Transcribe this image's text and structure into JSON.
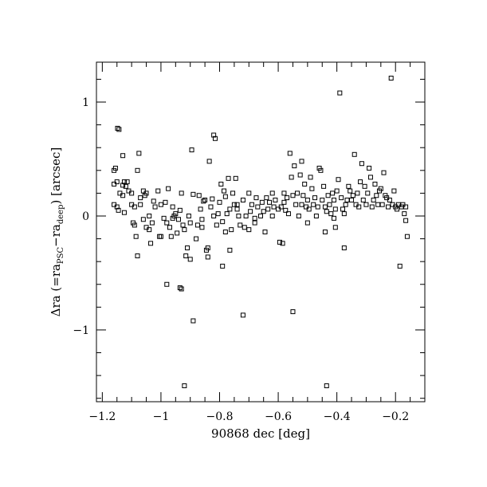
{
  "chart_data": {
    "type": "scatter",
    "title": "",
    "xlabel": "90868 dec [deg]",
    "ylabel": {
      "delta": "Δ",
      "base": "ra (=ra",
      "sub1": "PSC",
      "mid": "−ra",
      "sub2": "deep",
      "end": ") [arcsec]"
    },
    "xlim": [
      -1.22,
      -0.1
    ],
    "ylim": [
      -1.63,
      1.35
    ],
    "x_ticks": [
      -1.2,
      -1.0,
      -0.8,
      -0.6,
      -0.4,
      -0.2
    ],
    "x_tick_labels": [
      "−1.2",
      "−1",
      "−0.8",
      "−0.6",
      "−0.4",
      "−0.2"
    ],
    "y_ticks": [
      -1,
      0,
      1
    ],
    "y_tick_labels": [
      "−1",
      "0",
      "1"
    ],
    "grid": false,
    "legend": "none",
    "marker": "open-square",
    "color": "#000000",
    "points": [
      [
        -1.16,
        0.4
      ],
      [
        -1.155,
        0.42
      ],
      [
        -1.16,
        0.28
      ],
      [
        -1.15,
        0.3
      ],
      [
        -1.16,
        0.1
      ],
      [
        -1.15,
        0.08
      ],
      [
        -1.145,
        0.05
      ],
      [
        -1.14,
        0.2
      ],
      [
        -1.148,
        0.77
      ],
      [
        -1.143,
        0.76
      ],
      [
        -1.13,
        0.27
      ],
      [
        -1.125,
        0.3
      ],
      [
        -1.12,
        0.26
      ],
      [
        -1.13,
        0.18
      ],
      [
        -1.125,
        0.03
      ],
      [
        -1.115,
        0.3
      ],
      [
        -1.13,
        0.53
      ],
      [
        -1.11,
        0.22
      ],
      [
        -1.1,
        0.2
      ],
      [
        -1.1,
        0.1
      ],
      [
        -1.09,
        0.08
      ],
      [
        -1.095,
        -0.06
      ],
      [
        -1.09,
        -0.08
      ],
      [
        -1.085,
        -0.18
      ],
      [
        -1.08,
        0.4
      ],
      [
        -1.075,
        0.55
      ],
      [
        -1.08,
        -0.35
      ],
      [
        -1.07,
        0.16
      ],
      [
        -1.06,
        0.22
      ],
      [
        -1.055,
        0.18
      ],
      [
        -1.05,
        0.2
      ],
      [
        -1.06,
        -0.03
      ],
      [
        -1.05,
        -0.1
      ],
      [
        -1.04,
        0.0
      ],
      [
        -1.04,
        -0.12
      ],
      [
        -1.03,
        -0.06
      ],
      [
        -1.025,
        0.13
      ],
      [
        -1.02,
        0.08
      ],
      [
        -1.01,
        0.22
      ],
      [
        -1.005,
        -0.18
      ],
      [
        -1.0,
        0.1
      ],
      [
        -0.99,
        -0.02
      ],
      [
        -0.985,
        0.12
      ],
      [
        -0.98,
        -0.06
      ],
      [
        -0.975,
        0.24
      ],
      [
        -0.97,
        -0.1
      ],
      [
        -0.965,
        -0.18
      ],
      [
        -0.96,
        -0.02
      ],
      [
        -0.955,
        0.0
      ],
      [
        -0.95,
        0.02
      ],
      [
        -0.945,
        -0.15
      ],
      [
        -0.94,
        -0.03
      ],
      [
        -0.935,
        0.05
      ],
      [
        -0.93,
        0.2
      ],
      [
        -0.925,
        -0.08
      ],
      [
        -0.92,
        -0.12
      ],
      [
        -0.915,
        -0.35
      ],
      [
        -0.91,
        -0.28
      ],
      [
        -0.905,
        0.0
      ],
      [
        -0.9,
        -0.06
      ],
      [
        -0.895,
        0.58
      ],
      [
        -0.89,
        0.19
      ],
      [
        -0.88,
        -0.2
      ],
      [
        -0.875,
        -0.08
      ],
      [
        -0.87,
        0.18
      ],
      [
        -0.865,
        0.06
      ],
      [
        -0.86,
        -0.03
      ],
      [
        -0.855,
        0.13
      ],
      [
        -0.85,
        0.14
      ],
      [
        -0.845,
        -0.3
      ],
      [
        -0.84,
        -0.36
      ],
      [
        -0.835,
        0.48
      ],
      [
        -0.83,
        0.08
      ],
      [
        -0.825,
        0.15
      ],
      [
        -0.82,
        0.71
      ],
      [
        -0.815,
        0.68
      ],
      [
        -0.81,
        -0.08
      ],
      [
        -0.805,
        0.02
      ],
      [
        -0.8,
        0.12
      ],
      [
        -0.795,
        0.28
      ],
      [
        -0.79,
        -0.05
      ],
      [
        -0.785,
        0.22
      ],
      [
        -0.78,
        0.17
      ],
      [
        -0.775,
        0.02
      ],
      [
        -0.77,
        0.33
      ],
      [
        -0.765,
        0.06
      ],
      [
        -0.76,
        -0.12
      ],
      [
        -0.755,
        0.2
      ],
      [
        -0.75,
        0.1
      ],
      [
        -0.745,
        0.33
      ],
      [
        -0.74,
        0.06
      ],
      [
        -0.735,
        0.0
      ],
      [
        -0.73,
        -0.08
      ],
      [
        -0.72,
        0.14
      ],
      [
        -0.715,
        -0.1
      ],
      [
        -0.71,
        0.0
      ],
      [
        -0.7,
        0.2
      ],
      [
        -0.695,
        0.04
      ],
      [
        -0.69,
        0.1
      ],
      [
        -0.68,
        -0.02
      ],
      [
        -0.675,
        0.16
      ],
      [
        -0.67,
        0.08
      ],
      [
        -0.66,
        0.0
      ],
      [
        -0.655,
        0.12
      ],
      [
        -0.65,
        0.04
      ],
      [
        -0.64,
        0.16
      ],
      [
        -0.635,
        0.06
      ],
      [
        -0.63,
        0.12
      ],
      [
        -0.62,
        0.0
      ],
      [
        -0.615,
        0.08
      ],
      [
        -0.61,
        0.14
      ],
      [
        -0.6,
        0.06
      ],
      [
        -0.59,
        0.08
      ],
      [
        -0.585,
        -0.24
      ],
      [
        -0.58,
        0.2
      ],
      [
        -0.575,
        0.05
      ],
      [
        -0.57,
        0.16
      ],
      [
        -0.565,
        0.02
      ],
      [
        -0.56,
        0.55
      ],
      [
        -0.555,
        0.34
      ],
      [
        -0.55,
        0.18
      ],
      [
        -0.545,
        0.44
      ],
      [
        -0.54,
        0.1
      ],
      [
        -0.535,
        0.2
      ],
      [
        -0.53,
        0.0
      ],
      [
        -0.525,
        0.36
      ],
      [
        -0.52,
        0.48
      ],
      [
        -0.515,
        0.18
      ],
      [
        -0.51,
        0.28
      ],
      [
        -0.505,
        0.08
      ],
      [
        -0.5,
        0.14
      ],
      [
        -0.495,
        0.06
      ],
      [
        -0.49,
        0.34
      ],
      [
        -0.485,
        0.24
      ],
      [
        -0.48,
        0.1
      ],
      [
        -0.475,
        0.16
      ],
      [
        -0.47,
        0.0
      ],
      [
        -0.465,
        0.08
      ],
      [
        -0.46,
        0.42
      ],
      [
        -0.455,
        0.4
      ],
      [
        -0.45,
        0.14
      ],
      [
        -0.445,
        0.26
      ],
      [
        -0.44,
        0.08
      ],
      [
        -0.435,
        0.04
      ],
      [
        -0.43,
        0.18
      ],
      [
        -0.425,
        0.1
      ],
      [
        -0.42,
        0.02
      ],
      [
        -0.415,
        0.2
      ],
      [
        -0.41,
        0.14
      ],
      [
        -0.405,
        0.06
      ],
      [
        -0.4,
        0.22
      ],
      [
        -0.395,
        0.32
      ],
      [
        -0.39,
        1.08
      ],
      [
        -0.385,
        0.16
      ],
      [
        -0.38,
        0.06
      ],
      [
        -0.375,
        0.02
      ],
      [
        -0.37,
        0.1
      ],
      [
        -0.365,
        0.14
      ],
      [
        -0.36,
        0.26
      ],
      [
        -0.355,
        0.22
      ],
      [
        -0.35,
        0.14
      ],
      [
        -0.345,
        0.18
      ],
      [
        -0.34,
        0.54
      ],
      [
        -0.335,
        0.1
      ],
      [
        -0.33,
        0.2
      ],
      [
        -0.325,
        0.08
      ],
      [
        -0.32,
        0.3
      ],
      [
        -0.315,
        0.46
      ],
      [
        -0.31,
        0.14
      ],
      [
        -0.305,
        0.26
      ],
      [
        -0.3,
        0.1
      ],
      [
        -0.295,
        0.2
      ],
      [
        -0.29,
        0.42
      ],
      [
        -0.285,
        0.34
      ],
      [
        -0.28,
        0.08
      ],
      [
        -0.275,
        0.14
      ],
      [
        -0.27,
        0.28
      ],
      [
        -0.265,
        0.18
      ],
      [
        -0.26,
        0.1
      ],
      [
        -0.255,
        0.22
      ],
      [
        -0.25,
        0.24
      ],
      [
        -0.245,
        0.1
      ],
      [
        -0.24,
        0.38
      ],
      [
        -0.235,
        0.18
      ],
      [
        -0.23,
        0.16
      ],
      [
        -0.225,
        0.08
      ],
      [
        -0.22,
        0.14
      ],
      [
        -0.215,
        1.21
      ],
      [
        -0.21,
        0.1
      ],
      [
        -0.205,
        0.22
      ],
      [
        -0.2,
        0.08
      ],
      [
        -0.195,
        0.06
      ],
      [
        -0.19,
        0.1
      ],
      [
        -0.185,
        -0.44
      ],
      [
        -0.18,
        0.08
      ],
      [
        -0.175,
        0.1
      ],
      [
        -0.17,
        0.02
      ],
      [
        -0.165,
        -0.04
      ],
      [
        -0.16,
        -0.18
      ],
      [
        -0.165,
        0.08
      ],
      [
        -0.55,
        -0.84
      ],
      [
        -0.72,
        -0.87
      ],
      [
        -0.89,
        -0.92
      ],
      [
        -0.93,
        -0.64
      ],
      [
        -0.935,
        -0.63
      ],
      [
        -0.98,
        -0.6
      ],
      [
        -0.79,
        -0.44
      ],
      [
        -0.92,
        -1.49
      ],
      [
        -0.435,
        -1.49
      ],
      [
        -0.595,
        -0.23
      ],
      [
        -0.765,
        -0.3
      ],
      [
        -0.84,
        -0.28
      ],
      [
        -0.9,
        -0.38
      ],
      [
        -1.035,
        -0.24
      ],
      [
        -0.645,
        -0.14
      ],
      [
        -0.5,
        -0.06
      ],
      [
        -0.44,
        -0.14
      ],
      [
        -0.405,
        -0.1
      ],
      [
        -0.375,
        -0.28
      ],
      [
        -0.41,
        -0.02
      ],
      [
        -0.52,
        0.1
      ],
      [
        -0.58,
        0.12
      ],
      [
        -0.62,
        0.2
      ],
      [
        -0.68,
        -0.06
      ],
      [
        -0.7,
        -0.12
      ],
      [
        -0.74,
        0.1
      ],
      [
        -0.78,
        -0.14
      ],
      [
        -0.82,
        0.0
      ],
      [
        -0.86,
        -0.1
      ],
      [
        -0.96,
        0.08
      ],
      [
        -1.0,
        -0.18
      ],
      [
        -1.07,
        0.1
      ]
    ]
  }
}
